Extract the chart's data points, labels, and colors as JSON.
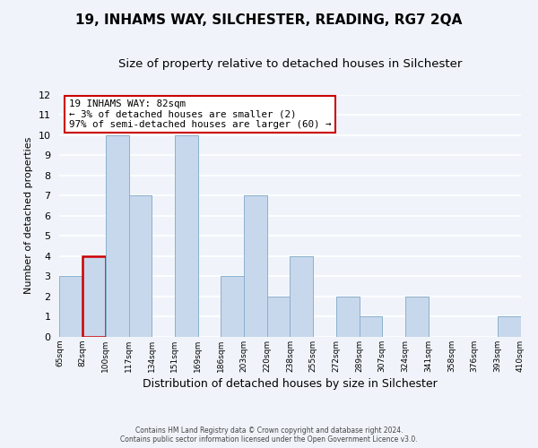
{
  "title": "19, INHAMS WAY, SILCHESTER, READING, RG7 2QA",
  "subtitle": "Size of property relative to detached houses in Silchester",
  "xlabel": "Distribution of detached houses by size in Silchester",
  "ylabel": "Number of detached properties",
  "bar_color": "#c8d8ec",
  "bar_edge_color": "#8ab0cc",
  "highlight_bar_index": 1,
  "highlight_color": "#c8d8ec",
  "highlight_edge_color": "#cc0000",
  "bins": [
    "65sqm",
    "82sqm",
    "100sqm",
    "117sqm",
    "134sqm",
    "151sqm",
    "169sqm",
    "186sqm",
    "203sqm",
    "220sqm",
    "238sqm",
    "255sqm",
    "272sqm",
    "289sqm",
    "307sqm",
    "324sqm",
    "341sqm",
    "358sqm",
    "376sqm",
    "393sqm",
    "410sqm"
  ],
  "values": [
    3,
    4,
    10,
    7,
    0,
    10,
    0,
    3,
    7,
    2,
    4,
    0,
    2,
    1,
    0,
    2,
    0,
    0,
    0,
    1,
    1
  ],
  "ylim": [
    0,
    12
  ],
  "yticks": [
    0,
    1,
    2,
    3,
    4,
    5,
    6,
    7,
    8,
    9,
    10,
    11,
    12
  ],
  "annotation_title": "19 INHAMS WAY: 82sqm",
  "annotation_line1": "← 3% of detached houses are smaller (2)",
  "annotation_line2": "97% of semi-detached houses are larger (60) →",
  "footer1": "Contains HM Land Registry data © Crown copyright and database right 2024.",
  "footer2": "Contains public sector information licensed under the Open Government Licence v3.0.",
  "background_color": "#f0f4fa",
  "grid_color": "#ffffff",
  "title_fontsize": 11,
  "subtitle_fontsize": 9.5
}
